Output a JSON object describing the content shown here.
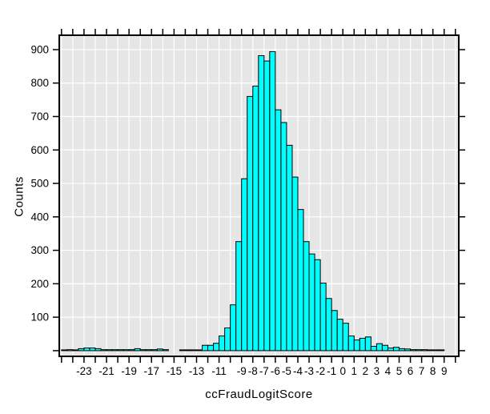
{
  "window": {
    "background": "#ffffff"
  },
  "chart_data": {
    "type": "bar",
    "subtype": "histogram",
    "title": "",
    "xlabel": "ccFraudLogitScore",
    "ylabel": "Counts",
    "legend": false,
    "grid": true,
    "plot_background": "#e6e6e6",
    "gridline_color": "#ffffff",
    "axis_color": "#000000",
    "bar_fill": "#00ffff",
    "bar_stroke": "#000000",
    "bin_width": 0.5,
    "xlim": [
      -25.2,
      10.3
    ],
    "ylim": [
      -17,
      943
    ],
    "x_ticks": [
      -25,
      -24,
      -23,
      -22,
      -21,
      -20,
      -19,
      -18,
      -17,
      -16,
      -15,
      -14,
      -13,
      -12,
      -11,
      -10,
      -9,
      -8,
      -7,
      -6,
      -5,
      -4,
      -3,
      -2,
      -1,
      0,
      1,
      2,
      3,
      4,
      5,
      6,
      7,
      8,
      9,
      10
    ],
    "x_tick_labels": [
      [
        -23,
        "-23"
      ],
      [
        -21,
        "-21"
      ],
      [
        -19,
        "-19"
      ],
      [
        -17,
        "-17"
      ],
      [
        -15,
        "-15"
      ],
      [
        -13,
        "-13"
      ],
      [
        -11,
        "-11"
      ],
      [
        -9,
        "-9"
      ],
      [
        -8,
        "-8"
      ],
      [
        -7,
        "-7"
      ],
      [
        -6,
        "-6"
      ],
      [
        -5,
        "-5"
      ],
      [
        -4,
        "-4"
      ],
      [
        -3,
        "-3"
      ],
      [
        -2,
        "-2"
      ],
      [
        -1,
        "-1"
      ],
      [
        0,
        "0"
      ],
      [
        1,
        "1"
      ],
      [
        2,
        "2"
      ],
      [
        3,
        "3"
      ],
      [
        4,
        "4"
      ],
      [
        5,
        "5"
      ],
      [
        6,
        "6"
      ],
      [
        7,
        "7"
      ],
      [
        8,
        "8"
      ],
      [
        9,
        "9"
      ]
    ],
    "y_ticks": [
      0,
      100,
      200,
      300,
      400,
      500,
      600,
      700,
      800,
      900
    ],
    "y_tick_labels": [
      [
        100,
        "100"
      ],
      [
        200,
        "200"
      ],
      [
        300,
        "300"
      ],
      [
        400,
        "400"
      ],
      [
        500,
        "500"
      ],
      [
        600,
        "600"
      ],
      [
        700,
        "700"
      ],
      [
        800,
        "800"
      ],
      [
        900,
        "900"
      ]
    ],
    "bins": [
      [
        -25,
        2
      ],
      [
        -24.5,
        3
      ],
      [
        -24,
        2
      ],
      [
        -23.5,
        6
      ],
      [
        -23,
        8
      ],
      [
        -22.5,
        8
      ],
      [
        -22,
        6
      ],
      [
        -21.5,
        3
      ],
      [
        -21,
        3
      ],
      [
        -20.5,
        3
      ],
      [
        -20,
        3
      ],
      [
        -19.5,
        3
      ],
      [
        -19,
        3
      ],
      [
        -18.5,
        6
      ],
      [
        -18,
        3
      ],
      [
        -17.5,
        3
      ],
      [
        -17,
        3
      ],
      [
        -16.5,
        5
      ],
      [
        -16,
        3
      ],
      [
        -15.5,
        0
      ],
      [
        -15,
        0
      ],
      [
        -14.5,
        2
      ],
      [
        -14,
        2
      ],
      [
        -13.5,
        2
      ],
      [
        -13,
        2
      ],
      [
        -12.5,
        16
      ],
      [
        -12,
        16
      ],
      [
        -11.5,
        22
      ],
      [
        -11,
        44
      ],
      [
        -10.5,
        68
      ],
      [
        -10,
        137
      ],
      [
        -9.5,
        326
      ],
      [
        -9,
        514
      ],
      [
        -8.5,
        760
      ],
      [
        -8,
        791
      ],
      [
        -7.5,
        882
      ],
      [
        -7,
        866
      ],
      [
        -6.5,
        894
      ],
      [
        -6,
        720
      ],
      [
        -5.5,
        682
      ],
      [
        -5,
        614
      ],
      [
        -4.5,
        519
      ],
      [
        -4,
        422
      ],
      [
        -3.5,
        326
      ],
      [
        -3,
        289
      ],
      [
        -2.5,
        272
      ],
      [
        -2,
        202
      ],
      [
        -1.5,
        156
      ],
      [
        -1,
        120
      ],
      [
        -0.5,
        94
      ],
      [
        0,
        82
      ],
      [
        0.5,
        44
      ],
      [
        1,
        32
      ],
      [
        1.5,
        37
      ],
      [
        2,
        41
      ],
      [
        2.5,
        13
      ],
      [
        3,
        21
      ],
      [
        3.5,
        16
      ],
      [
        4,
        8
      ],
      [
        4.5,
        10
      ],
      [
        5,
        6
      ],
      [
        5.5,
        5
      ],
      [
        6,
        3
      ],
      [
        6.5,
        3
      ],
      [
        7,
        3
      ],
      [
        7.5,
        2
      ],
      [
        8,
        2
      ],
      [
        8.5,
        2
      ]
    ]
  }
}
